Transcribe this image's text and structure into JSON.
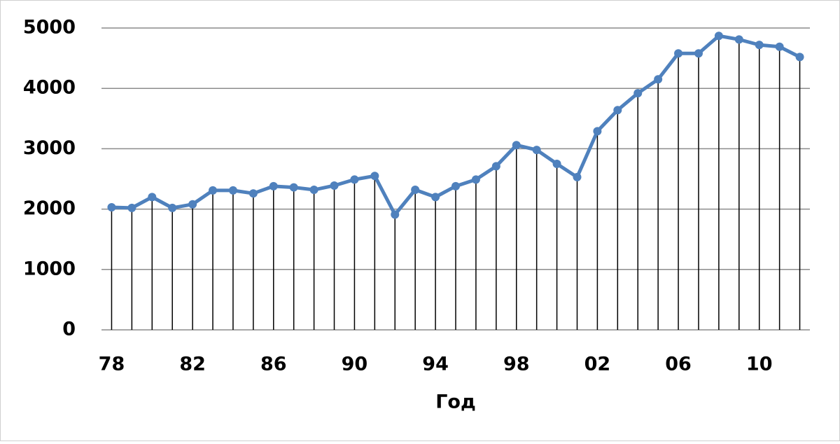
{
  "chart_data": {
    "type": "line",
    "x_label": "Год",
    "categories": [
      "78",
      null,
      null,
      null,
      "82",
      null,
      null,
      null,
      "86",
      null,
      null,
      null,
      "90",
      null,
      null,
      null,
      "94",
      null,
      null,
      null,
      "98",
      null,
      null,
      null,
      "02",
      null,
      null,
      null,
      "06",
      null,
      null,
      null,
      "10",
      null,
      null
    ],
    "series": [
      {
        "color": "#4f81bd",
        "values": [
          2030,
          2020,
          2200,
          2020,
          2080,
          2310,
          2310,
          2260,
          2380,
          2360,
          2320,
          2390,
          2490,
          2550,
          1910,
          2320,
          2200,
          2380,
          2490,
          2710,
          3060,
          2980,
          2750,
          2530,
          3290,
          3640,
          3920,
          4150,
          4580,
          4580,
          4870,
          4810,
          4720,
          4690,
          4520
        ]
      }
    ],
    "ylim": [
      0,
      5000
    ],
    "yticks": [
      0,
      1000,
      2000,
      3000,
      4000,
      5000
    ],
    "grid": true,
    "drop_lines": true,
    "drop_line_color": "#000000",
    "markers": true
  }
}
